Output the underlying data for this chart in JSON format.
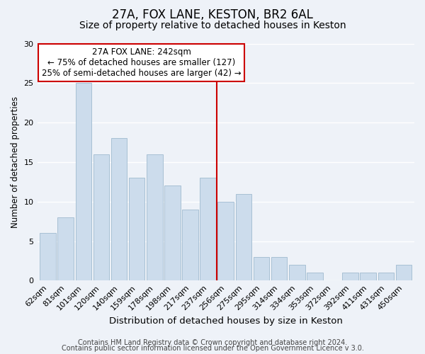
{
  "title": "27A, FOX LANE, KESTON, BR2 6AL",
  "subtitle": "Size of property relative to detached houses in Keston",
  "xlabel": "Distribution of detached houses by size in Keston",
  "ylabel": "Number of detached properties",
  "footer1": "Contains HM Land Registry data © Crown copyright and database right 2024.",
  "footer2": "Contains public sector information licensed under the Open Government Licence v 3.0.",
  "bar_labels": [
    "62sqm",
    "81sqm",
    "101sqm",
    "120sqm",
    "140sqm",
    "159sqm",
    "178sqm",
    "198sqm",
    "217sqm",
    "237sqm",
    "256sqm",
    "275sqm",
    "295sqm",
    "314sqm",
    "334sqm",
    "353sqm",
    "372sqm",
    "392sqm",
    "411sqm",
    "431sqm",
    "450sqm"
  ],
  "bar_values": [
    6,
    8,
    25,
    16,
    18,
    13,
    16,
    12,
    9,
    13,
    10,
    11,
    3,
    3,
    2,
    1,
    0,
    1,
    1,
    1,
    2
  ],
  "bar_color": "#ccdcec",
  "bar_edge_color": "#a8c0d4",
  "background_color": "#eef2f8",
  "grid_color": "#ffffff",
  "vline_color": "#cc0000",
  "annotation_line1": "27A FOX LANE: 242sqm",
  "annotation_line2": "← 75% of detached houses are smaller (127)",
  "annotation_line3": "25% of semi-detached houses are larger (42) →",
  "annotation_box_color": "#ffffff",
  "annotation_box_edge": "#cc0000",
  "ylim": [
    0,
    30
  ],
  "yticks": [
    0,
    5,
    10,
    15,
    20,
    25,
    30
  ],
  "title_fontsize": 12,
  "subtitle_fontsize": 10,
  "xlabel_fontsize": 9.5,
  "ylabel_fontsize": 8.5,
  "tick_fontsize": 8,
  "annotation_fontsize": 8.5,
  "footer_fontsize": 7
}
